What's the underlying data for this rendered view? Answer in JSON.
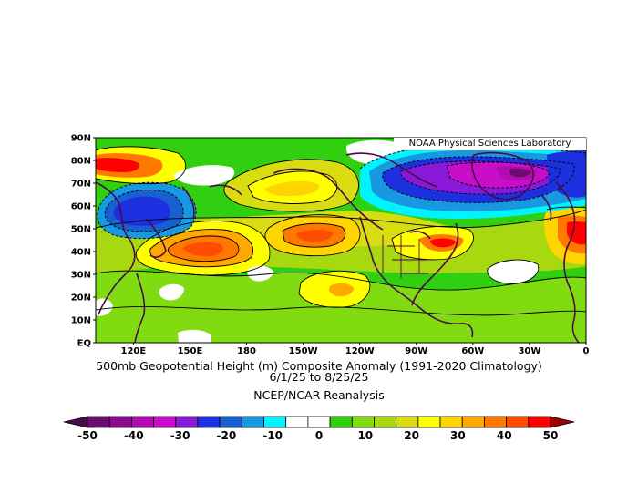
{
  "map": {
    "credit": "NOAA Physical Sciences Laboratory",
    "lat_ticks": [
      "90N",
      "80N",
      "70N",
      "60N",
      "50N",
      "40N",
      "30N",
      "20N",
      "10N",
      "EQ"
    ],
    "lon_ticks": [
      "120E",
      "150E",
      "180",
      "150W",
      "120W",
      "90W",
      "60W",
      "30W",
      "0"
    ],
    "lat_range": [
      0,
      90
    ],
    "lon_range": [
      100,
      360
    ],
    "title": "500mb Geopotential Height (m) Composite Anomaly (1991-2020 Climatology)",
    "date_range": "6/1/25  to 8/25/25",
    "source": "NCEP/NCAR Reanalysis"
  },
  "legend": {
    "labels": [
      "-50",
      "-40",
      "-30",
      "-20",
      "-10",
      "0",
      "10",
      "20",
      "30",
      "40",
      "50"
    ],
    "bin_colors": [
      "#6a0c70",
      "#8a0c8c",
      "#b00cb0",
      "#c80ec8",
      "#8a18d8",
      "#1c30e0",
      "#1860d0",
      "#1898e0",
      "#00f4ff",
      "#ffffff",
      "#ffffff",
      "#30d010",
      "#80dc10",
      "#a8d810",
      "#d8dc10",
      "#ffff00",
      "#ffd400",
      "#ffa800",
      "#ff7800",
      "#ff4c00",
      "#ff0000"
    ],
    "low_color": "#4a0a4a",
    "high_color": "#a00000"
  }
}
